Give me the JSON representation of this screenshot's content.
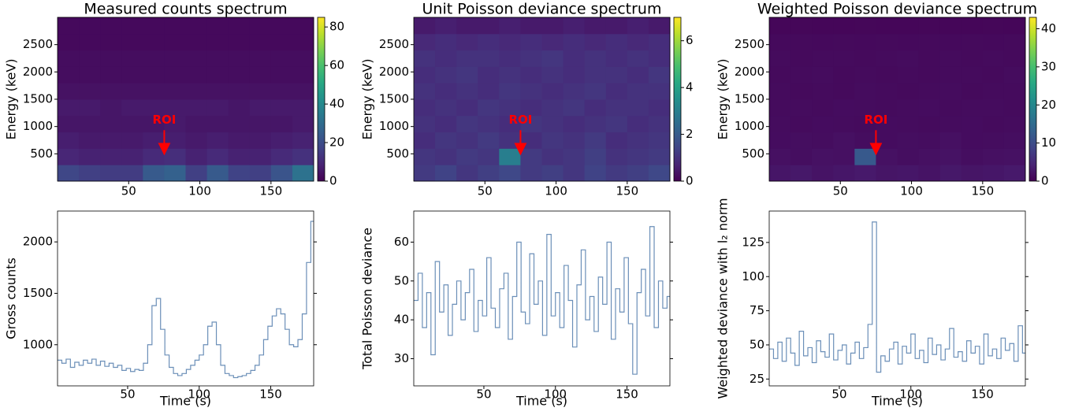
{
  "chart_data": [
    {
      "type": "heatmap",
      "title": "Measured counts spectrum",
      "ylabel": "Energy (keV)",
      "colormap": "viridis",
      "xbins": [
        0,
        15,
        30,
        45,
        60,
        75,
        90,
        105,
        120,
        135,
        150,
        165,
        180
      ],
      "ybins": [
        0,
        300,
        600,
        900,
        1200,
        1500,
        1800,
        2100,
        2400,
        2700,
        3000
      ],
      "z": [
        [
          18,
          16,
          15,
          15,
          24,
          26,
          16,
          24,
          17,
          16,
          22,
          32
        ],
        [
          9,
          8,
          8,
          8,
          10,
          11,
          8,
          10,
          8,
          8,
          10,
          12
        ],
        [
          7,
          6,
          6,
          6,
          7,
          7,
          6,
          7,
          6,
          6,
          7,
          8
        ],
        [
          5,
          5,
          5,
          5,
          5,
          6,
          5,
          5,
          5,
          5,
          5,
          6
        ],
        [
          6,
          6,
          5,
          6,
          6,
          6,
          6,
          6,
          5,
          6,
          6,
          6
        ],
        [
          4,
          4,
          4,
          4,
          4,
          4,
          4,
          4,
          4,
          4,
          4,
          4
        ],
        [
          3,
          3,
          3,
          3,
          3,
          3,
          3,
          3,
          3,
          3,
          3,
          3
        ],
        [
          3,
          3,
          3,
          3,
          3,
          3,
          3,
          3,
          3,
          3,
          3,
          3
        ],
        [
          2,
          2,
          2,
          2,
          2,
          2,
          2,
          2,
          2,
          2,
          2,
          2
        ],
        [
          2,
          2,
          2,
          2,
          2,
          2,
          2,
          2,
          2,
          2,
          2,
          2
        ]
      ],
      "zlim": [
        0,
        85
      ],
      "zticks": [
        0,
        20,
        40,
        60,
        80
      ],
      "xlim": [
        0,
        180
      ],
      "ylim": [
        0,
        3000
      ],
      "xticks": [
        50,
        100,
        150
      ],
      "yticks": [
        500,
        1000,
        1500,
        2000,
        2500
      ],
      "annotation": {
        "text": "ROI",
        "x": 75,
        "y": 500,
        "color": "#ff0000"
      }
    },
    {
      "type": "heatmap",
      "title": "Unit Poisson deviance spectrum",
      "ylabel": "Energy (keV)",
      "colormap": "viridis",
      "xbins": [
        0,
        15,
        30,
        45,
        60,
        75,
        90,
        105,
        120,
        135,
        150,
        165,
        180
      ],
      "ybins": [
        0,
        300,
        600,
        900,
        1200,
        1500,
        1800,
        2100,
        2400,
        2700,
        3000
      ],
      "z": [
        [
          1.2,
          1.4,
          1.1,
          1.3,
          1.5,
          1.2,
          1.3,
          1.1,
          1.4,
          1.2,
          1.3,
          1.5
        ],
        [
          1.1,
          1.0,
          1.2,
          1.1,
          3.0,
          1.2,
          1.0,
          1.1,
          1.3,
          1.0,
          1.1,
          1.2
        ],
        [
          0.9,
          1.1,
          1.0,
          1.2,
          1.0,
          0.9,
          1.1,
          1.0,
          1.2,
          0.9,
          1.0,
          1.1
        ],
        [
          1.0,
          0.9,
          1.1,
          1.0,
          0.9,
          1.1,
          1.0,
          0.9,
          1.0,
          1.1,
          0.9,
          1.0
        ],
        [
          0.9,
          1.0,
          0.9,
          1.1,
          1.0,
          0.9,
          1.0,
          1.1,
          0.9,
          1.0,
          1.0,
          0.9
        ],
        [
          1.0,
          0.9,
          1.0,
          0.9,
          1.1,
          1.0,
          0.9,
          1.0,
          1.1,
          0.9,
          1.0,
          1.0
        ],
        [
          0.9,
          1.0,
          1.1,
          0.9,
          1.0,
          0.9,
          1.0,
          0.9,
          1.0,
          1.0,
          0.9,
          1.1
        ],
        [
          1.0,
          0.9,
          1.0,
          1.0,
          0.9,
          1.0,
          1.1,
          0.9,
          1.0,
          0.9,
          1.0,
          0.9
        ],
        [
          0.8,
          0.9,
          0.8,
          0.9,
          0.8,
          0.9,
          0.8,
          0.9,
          0.8,
          0.9,
          0.8,
          0.9
        ],
        [
          0.5,
          0.6,
          0.5,
          0.5,
          0.6,
          0.5,
          0.5,
          0.6,
          0.5,
          0.5,
          0.6,
          0.5
        ]
      ],
      "zlim": [
        0,
        7
      ],
      "zticks": [
        0,
        2,
        4,
        6
      ],
      "xlim": [
        0,
        180
      ],
      "ylim": [
        0,
        3000
      ],
      "xticks": [
        50,
        100,
        150
      ],
      "yticks": [
        500,
        1000,
        1500,
        2000,
        2500
      ],
      "annotation": {
        "text": "ROI",
        "x": 75,
        "y": 500,
        "color": "#ff0000"
      }
    },
    {
      "type": "heatmap",
      "title": "Weighted Poisson deviance spectrum",
      "ylabel": "Energy (keV)",
      "colormap": "viridis",
      "xbins": [
        0,
        15,
        30,
        45,
        60,
        75,
        90,
        105,
        120,
        135,
        150,
        165,
        180
      ],
      "ybins": [
        0,
        300,
        600,
        900,
        1200,
        1500,
        1800,
        2100,
        2400,
        2700,
        3000
      ],
      "z": [
        [
          2.5,
          2.8,
          2.2,
          2.6,
          3.0,
          2.4,
          2.6,
          2.2,
          2.8,
          2.4,
          2.6,
          3.0
        ],
        [
          1.8,
          1.6,
          2.0,
          1.8,
          12,
          2.0,
          1.6,
          1.8,
          2.1,
          1.6,
          1.8,
          2.0
        ],
        [
          1.4,
          1.6,
          1.5,
          1.8,
          1.5,
          1.4,
          1.6,
          1.5,
          1.8,
          1.4,
          1.5,
          1.6
        ],
        [
          1.3,
          1.2,
          1.4,
          1.3,
          1.2,
          1.4,
          1.3,
          1.2,
          1.3,
          1.4,
          1.2,
          1.3
        ],
        [
          1.2,
          1.3,
          1.2,
          1.4,
          1.3,
          1.2,
          1.3,
          1.4,
          1.2,
          1.3,
          1.3,
          1.2
        ],
        [
          1.2,
          1.1,
          1.2,
          1.1,
          1.3,
          1.2,
          1.1,
          1.2,
          1.3,
          1.1,
          1.2,
          1.2
        ],
        [
          1.1,
          1.2,
          1.3,
          1.1,
          1.2,
          1.1,
          1.2,
          1.1,
          1.2,
          1.2,
          1.1,
          1.3
        ],
        [
          1.2,
          1.1,
          1.2,
          1.2,
          1.1,
          1.2,
          1.3,
          1.1,
          1.2,
          1.1,
          1.2,
          1.1
        ],
        [
          1.0,
          1.1,
          1.0,
          1.1,
          1.0,
          1.1,
          1.0,
          1.1,
          1.0,
          1.1,
          1.0,
          1.1
        ],
        [
          0.6,
          0.7,
          0.6,
          0.6,
          0.7,
          0.6,
          0.6,
          0.7,
          0.6,
          0.6,
          0.7,
          0.6
        ]
      ],
      "zlim": [
        0,
        43
      ],
      "zticks": [
        0,
        10,
        20,
        30,
        40
      ],
      "xlim": [
        0,
        180
      ],
      "ylim": [
        0,
        3000
      ],
      "xticks": [
        50,
        100,
        150
      ],
      "yticks": [
        500,
        1000,
        1500,
        2000,
        2500
      ],
      "annotation": {
        "text": "ROI",
        "x": 75,
        "y": 500,
        "color": "#ff0000"
      }
    },
    {
      "type": "step",
      "xlabel": "Time (s)",
      "ylabel": "Gross counts",
      "color": "#6b8fb8",
      "x": [
        1,
        4,
        7,
        10,
        13,
        16,
        19,
        22,
        25,
        28,
        31,
        34,
        37,
        40,
        43,
        46,
        49,
        52,
        55,
        58,
        61,
        64,
        67,
        70,
        73,
        76,
        79,
        82,
        85,
        88,
        91,
        94,
        97,
        100,
        103,
        106,
        109,
        112,
        115,
        118,
        121,
        124,
        127,
        130,
        133,
        136,
        139,
        142,
        145,
        148,
        151,
        154,
        157,
        160,
        163,
        166,
        169,
        172,
        175,
        178
      ],
      "values": [
        850,
        820,
        860,
        780,
        830,
        800,
        850,
        820,
        860,
        800,
        840,
        790,
        820,
        780,
        800,
        750,
        770,
        740,
        760,
        750,
        820,
        1000,
        1380,
        1450,
        1150,
        900,
        780,
        720,
        700,
        720,
        760,
        800,
        850,
        900,
        1000,
        1180,
        1220,
        1000,
        800,
        720,
        700,
        680,
        690,
        700,
        720,
        750,
        800,
        900,
        1050,
        1180,
        1280,
        1350,
        1300,
        1150,
        1000,
        980,
        1050,
        1300,
        1800,
        2200
      ],
      "xlim": [
        1,
        180
      ],
      "ylim": [
        600,
        2300
      ],
      "xticks": [
        50,
        100,
        150
      ],
      "yticks": [
        1000,
        1500,
        2000
      ]
    },
    {
      "type": "step",
      "xlabel": "Time (s)",
      "ylabel": "Total Poisson deviance",
      "color": "#6b8fb8",
      "x": [
        1,
        4,
        7,
        10,
        13,
        16,
        19,
        22,
        25,
        28,
        31,
        34,
        37,
        40,
        43,
        46,
        49,
        52,
        55,
        58,
        61,
        64,
        67,
        70,
        73,
        76,
        79,
        82,
        85,
        88,
        91,
        94,
        97,
        100,
        103,
        106,
        109,
        112,
        115,
        118,
        121,
        124,
        127,
        130,
        133,
        136,
        139,
        142,
        145,
        148,
        151,
        154,
        157,
        160,
        163,
        166,
        169,
        172,
        175,
        178
      ],
      "values": [
        45,
        52,
        38,
        47,
        31,
        55,
        42,
        49,
        36,
        44,
        50,
        40,
        47,
        53,
        37,
        45,
        41,
        56,
        43,
        38,
        48,
        52,
        35,
        46,
        60,
        42,
        39,
        57,
        44,
        50,
        36,
        62,
        41,
        47,
        38,
        54,
        45,
        33,
        49,
        58,
        40,
        46,
        37,
        51,
        44,
        60,
        35,
        48,
        42,
        56,
        39,
        26,
        47,
        53,
        41,
        64,
        38,
        50,
        43,
        46
      ],
      "xlim": [
        1,
        180
      ],
      "ylim": [
        23,
        68
      ],
      "xticks": [
        50,
        100,
        150
      ],
      "yticks": [
        30,
        40,
        50,
        60
      ]
    },
    {
      "type": "step",
      "xlabel": "Time (s)",
      "ylabel": "Weighted deviance with l₂ norm",
      "color": "#6b8fb8",
      "x": [
        1,
        4,
        7,
        10,
        13,
        16,
        19,
        22,
        25,
        28,
        31,
        34,
        37,
        40,
        43,
        46,
        49,
        52,
        55,
        58,
        61,
        64,
        67,
        70,
        73,
        76,
        79,
        82,
        85,
        88,
        91,
        94,
        97,
        100,
        103,
        106,
        109,
        112,
        115,
        118,
        121,
        124,
        127,
        130,
        133,
        136,
        139,
        142,
        145,
        148,
        151,
        154,
        157,
        160,
        163,
        166,
        169,
        172,
        175,
        178
      ],
      "values": [
        47,
        40,
        52,
        38,
        55,
        44,
        35,
        60,
        42,
        48,
        37,
        53,
        45,
        41,
        58,
        39,
        46,
        50,
        36,
        44,
        52,
        40,
        48,
        65,
        140,
        30,
        42,
        38,
        47,
        52,
        36,
        49,
        44,
        58,
        40,
        46,
        37,
        55,
        43,
        50,
        39,
        47,
        62,
        41,
        45,
        38,
        53,
        44,
        49,
        36,
        58,
        42,
        47,
        40,
        55,
        46,
        51,
        38,
        64,
        44
      ],
      "xlim": [
        1,
        180
      ],
      "ylim": [
        20,
        148
      ],
      "xticks": [
        50,
        100,
        150
      ],
      "yticks": [
        25,
        50,
        75,
        100,
        125
      ]
    }
  ]
}
